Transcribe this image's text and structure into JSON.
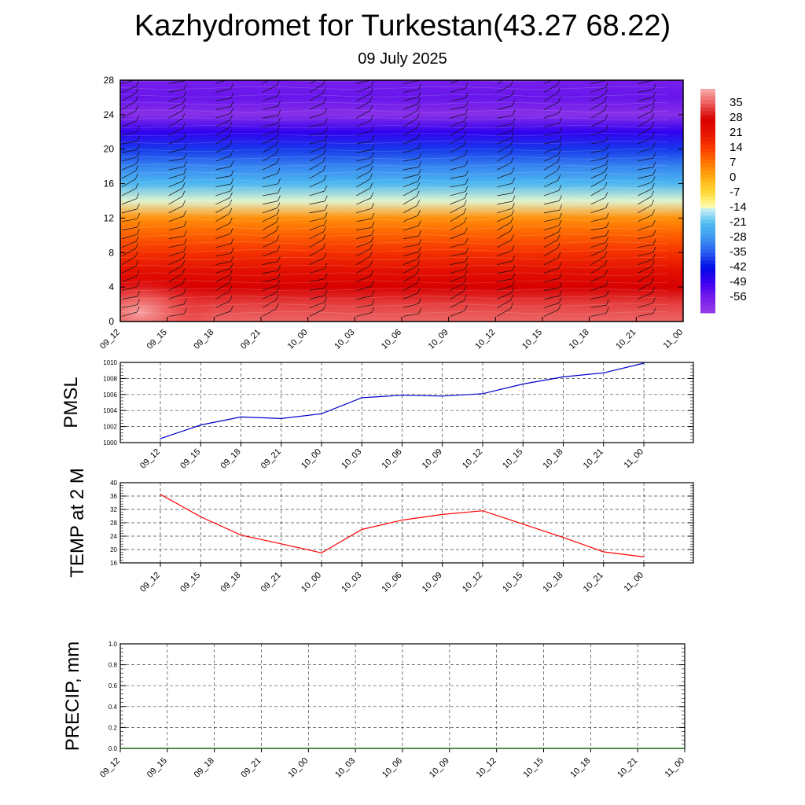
{
  "title": "Kazhydromet for Turkestan(43.27 68.22)",
  "subtitle": "09 July 2025",
  "time_labels": [
    "09_12",
    "09_15",
    "09_18",
    "09_21",
    "10_00",
    "10_03",
    "10_06",
    "10_09",
    "10_12",
    "10_15",
    "10_18",
    "10_21",
    "11_00"
  ],
  "chart_data": [
    {
      "type": "heatmap",
      "title": "",
      "xlabel": "",
      "ylabel": "",
      "x": [
        "09_12",
        "09_15",
        "09_18",
        "09_21",
        "10_00",
        "10_03",
        "10_06",
        "10_09",
        "10_12",
        "10_15",
        "10_18",
        "10_21",
        "11_00"
      ],
      "ylim": [
        0,
        28
      ],
      "yticks": [
        0,
        4,
        8,
        12,
        16,
        20,
        24,
        28
      ],
      "levels": [
        0,
        2,
        4,
        6,
        8,
        10,
        12,
        14,
        16,
        18,
        20,
        22,
        24,
        26,
        28
      ],
      "temperature": [
        36,
        33,
        28,
        22,
        16,
        10,
        4,
        -14,
        -22,
        -30,
        -38,
        -48,
        -60,
        -54,
        -56
      ],
      "colorbar_ticks": [
        35,
        28,
        21,
        14,
        7,
        0,
        -7,
        -14,
        -21,
        -28,
        -35,
        -42,
        -49,
        -56
      ],
      "colorbar_range": [
        -63,
        42
      ],
      "overlay": "wind barbs"
    },
    {
      "type": "line",
      "ylabel": "PMSL",
      "x": [
        "09_12",
        "09_15",
        "09_18",
        "09_21",
        "10_00",
        "10_03",
        "10_06",
        "10_09",
        "10_12",
        "10_15",
        "10_18",
        "10_21",
        "11_00"
      ],
      "ylim": [
        1000,
        1010
      ],
      "yticks": [
        1000,
        1002,
        1004,
        1006,
        1008,
        1010
      ],
      "series": [
        {
          "values": [
            1000.5,
            1002.2,
            1003.2,
            1003.0,
            1003.6,
            1005.6,
            1005.9,
            1005.8,
            1006.1,
            1007.3,
            1008.2,
            1008.7,
            1009.9
          ],
          "color": "#0000cc"
        }
      ],
      "grid": true
    },
    {
      "type": "line",
      "ylabel": "TEMP at 2 M",
      "x": [
        "09_12",
        "09_15",
        "09_18",
        "09_21",
        "10_00",
        "10_03",
        "10_06",
        "10_09",
        "10_12",
        "10_15",
        "10_18",
        "10_21",
        "11_00"
      ],
      "ylim": [
        16,
        40
      ],
      "yticks": [
        16,
        20,
        24,
        28,
        32,
        36,
        40
      ],
      "series": [
        {
          "values": [
            36.5,
            29.8,
            24.3,
            21.7,
            19.0,
            26.0,
            28.8,
            30.5,
            31.6,
            27.6,
            23.6,
            19.3,
            17.8
          ],
          "color": "#ff0000"
        }
      ],
      "grid": true
    },
    {
      "type": "line",
      "ylabel": "PRECIP, mm",
      "x": [
        "09_12",
        "09_15",
        "09_18",
        "09_21",
        "10_00",
        "10_03",
        "10_06",
        "10_09",
        "10_12",
        "10_15",
        "10_18",
        "10_21",
        "11_00"
      ],
      "ylim": [
        0.0,
        1.0
      ],
      "yticks": [
        "0.0",
        "0.2",
        "0.4",
        "0.6",
        "0.8",
        "1.0"
      ],
      "series": [
        {
          "values": [
            0,
            0,
            0,
            0,
            0,
            0,
            0,
            0,
            0,
            0,
            0,
            0,
            0
          ],
          "color": "#006400"
        }
      ],
      "grid": true
    }
  ]
}
